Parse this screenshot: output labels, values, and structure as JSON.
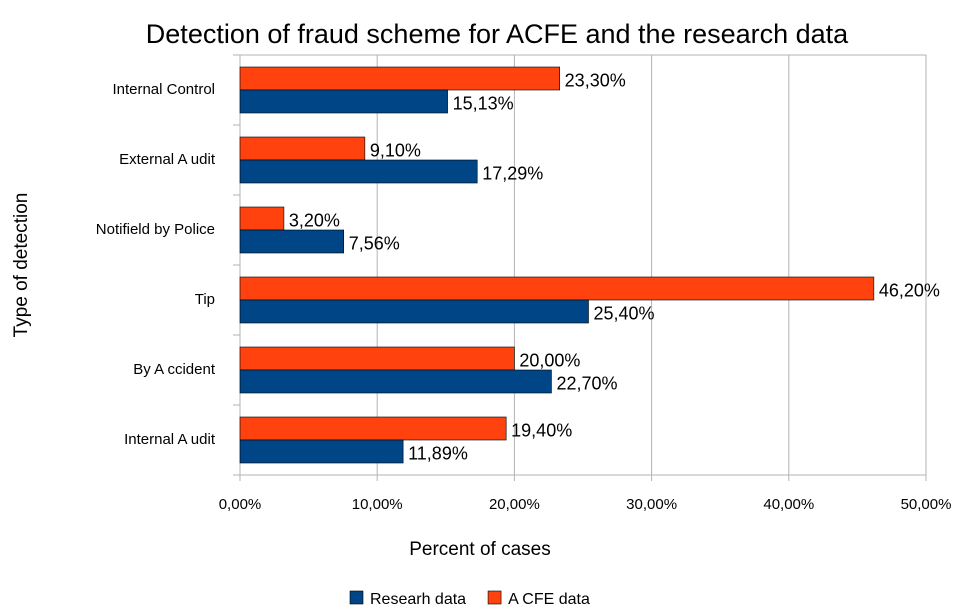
{
  "chart_data": {
    "type": "bar",
    "orientation": "horizontal",
    "title": "Detection of fraud scheme for ACFE and the research data",
    "x_label": "Percent of cases",
    "y_label": "Type of detection",
    "categories": [
      "Internal Control",
      "External A udit",
      "Notifield by Police",
      "Tip",
      "By A ccident",
      "Internal A udit"
    ],
    "series": [
      {
        "name": "A CFE data",
        "color": "#ff420e",
        "values": [
          23.3,
          9.1,
          3.2,
          46.2,
          20.0,
          19.4
        ],
        "value_labels": [
          "23,30%",
          "9,10%",
          "3,20%",
          "46,20%",
          "20,00%",
          "19,40%"
        ]
      },
      {
        "name": "Researh data",
        "color": "#004586",
        "values": [
          15.13,
          17.29,
          7.56,
          25.4,
          22.7,
          11.89
        ],
        "value_labels": [
          "15,13%",
          "17,29%",
          "7,56%",
          "25,40%",
          "22,70%",
          "11,89%"
        ]
      }
    ],
    "xlim": [
      0,
      50
    ],
    "xticks": [
      {
        "value": 0,
        "label": "0,00%"
      },
      {
        "value": 10,
        "label": "10,00%"
      },
      {
        "value": 20,
        "label": "20,00%"
      },
      {
        "value": 30,
        "label": "30,00%"
      },
      {
        "value": 40,
        "label": "40,00%"
      },
      {
        "value": 50,
        "label": "50,00%"
      }
    ],
    "grid": true,
    "legend": "bottom"
  }
}
